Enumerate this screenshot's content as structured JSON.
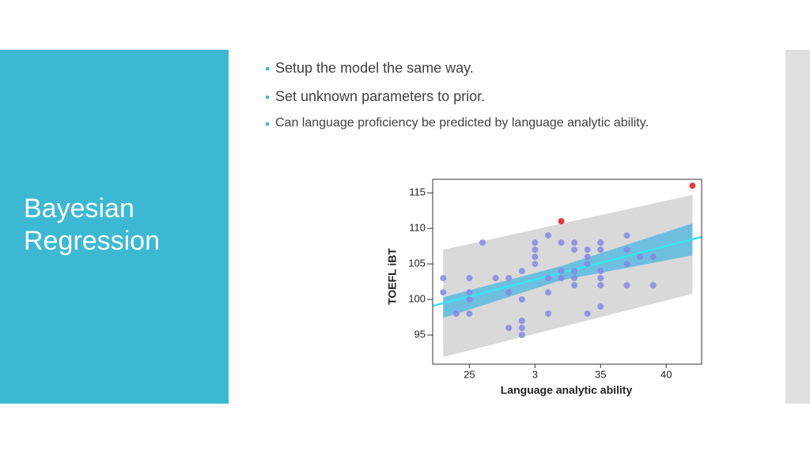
{
  "slide": {
    "title": "Bayesian Regression",
    "bullets": [
      "Setup the model the same way.",
      "Set unknown parameters to prior.",
      "Can language proficiency be predicted by language analytic ability."
    ]
  },
  "chart_data": {
    "type": "scatter",
    "xlabel": "Language analytic ability",
    "ylabel": "TOEFL iBT",
    "xlim": [
      2.22,
      4.27
    ],
    "ylim": [
      90.9,
      116.9
    ],
    "xticks": [
      {
        "value": 2.5,
        "label": "25"
      },
      3,
      {
        "value": 3.5,
        "label": "35"
      },
      {
        "value": 4.0,
        "label": "40"
      }
    ],
    "yticks": [
      95,
      100,
      105,
      110,
      115
    ],
    "bands": [
      {
        "color": "#d9d9d9",
        "x": [
          2.3,
          4.2
        ],
        "lower": [
          91.9,
          100.8
        ],
        "upper": [
          107,
          114.7
        ]
      },
      {
        "color": "#5bb8e0",
        "x": [
          2.3,
          3.2,
          4.2
        ],
        "lower": [
          97.4,
          102.7,
          106.2
        ],
        "upper": [
          100.3,
          104.7,
          110.7
        ]
      }
    ],
    "fit_line": {
      "color": "#38e4f0",
      "x": [
        2.22,
        4.27
      ],
      "values": [
        99.1,
        108.8
      ]
    },
    "series": [
      {
        "color": "#8488e4",
        "x": [
          2.3,
          2.3,
          2.4,
          2.5,
          2.5,
          2.5,
          2.5,
          2.6,
          2.7,
          2.8,
          2.8,
          2.8,
          2.9,
          2.9,
          2.9,
          2.9,
          2.9,
          3.0,
          3.0,
          3.0,
          3.0,
          3.1,
          3.1,
          3.1,
          3.1,
          3.2,
          3.2,
          3.2,
          3.3,
          3.3,
          3.3,
          3.3,
          3.3,
          3.4,
          3.4,
          3.4,
          3.4,
          3.5,
          3.5,
          3.5,
          3.5,
          3.5,
          3.5,
          3.7,
          3.7,
          3.7,
          3.7,
          3.8,
          3.9,
          3.9
        ],
        "values": [
          103,
          101,
          98,
          103,
          101,
          100,
          98,
          108,
          103,
          103,
          101,
          96,
          104,
          100,
          97,
          96,
          95,
          108,
          107,
          106,
          105,
          109,
          103,
          101,
          98,
          108,
          104,
          103,
          108,
          107,
          104,
          103,
          102,
          107,
          106,
          105,
          98,
          108,
          107,
          104,
          103,
          102,
          99,
          109,
          107,
          105,
          102,
          106,
          106,
          102
        ]
      },
      {
        "color": "#e01a1a",
        "x": [
          3.2,
          4.2
        ],
        "values": [
          111,
          116
        ]
      }
    ]
  }
}
